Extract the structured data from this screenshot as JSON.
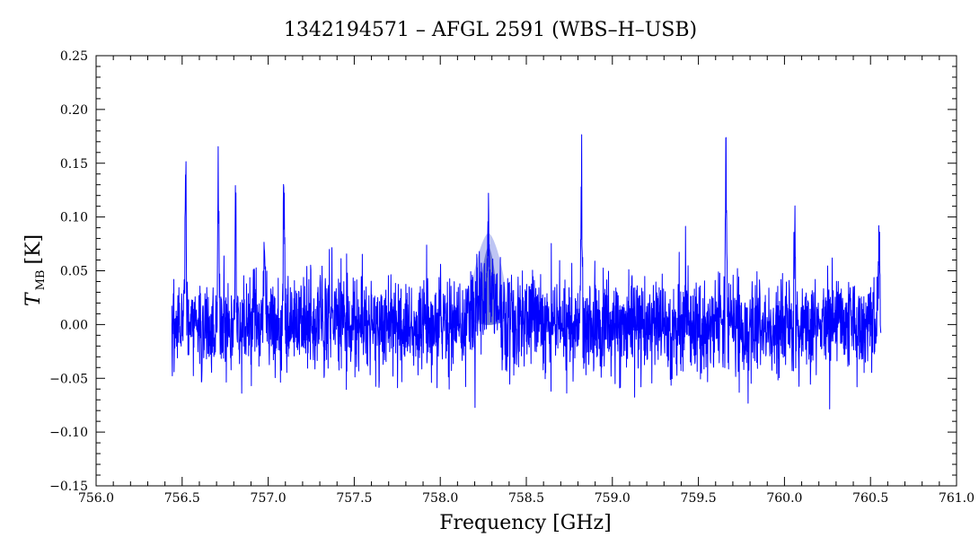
{
  "chart_data": {
    "type": "line",
    "title": "1342194571 – AFGL 2591 (WBS–H–USB)",
    "xlabel": "Frequency [GHz]",
    "ylabel": {
      "symbol": "T",
      "subscript": "MB",
      "unit": "[K]"
    },
    "xlim": [
      756.0,
      761.0
    ],
    "ylim": [
      -0.15,
      0.25
    ],
    "x_ticks": [
      "756.0",
      "756.5",
      "757.0",
      "757.5",
      "758.0",
      "758.5",
      "759.0",
      "759.5",
      "760.0",
      "760.5",
      "761.0"
    ],
    "y_ticks": [
      "−0.15",
      "−0.10",
      "−0.05",
      "0.00",
      "0.05",
      "0.10",
      "0.15",
      "0.20",
      "0.25"
    ],
    "grid": false,
    "colors": {
      "series": "#0000ff",
      "axes": "#000000",
      "highlight_fill": "#7d8ce8",
      "highlight_core": "#1f2fb0"
    },
    "series": [
      {
        "x_range": [
          756.44,
          760.56
        ],
        "noise_sigma": 0.024,
        "peaks": [
          {
            "x": 756.52,
            "y": 0.17
          },
          {
            "x": 756.71,
            "y": 0.14
          },
          {
            "x": 756.81,
            "y": 0.12
          },
          {
            "x": 756.98,
            "y": 0.1
          },
          {
            "x": 757.09,
            "y": 0.14
          },
          {
            "x": 758.28,
            "y": 0.085
          },
          {
            "x": 758.82,
            "y": 0.17
          },
          {
            "x": 759.66,
            "y": 0.19
          },
          {
            "x": 760.06,
            "y": 0.09
          },
          {
            "x": 760.55,
            "y": 0.08
          }
        ]
      }
    ],
    "highlight": {
      "x_center": 758.28,
      "x_halfwidth": 0.11,
      "y_peak": 0.085,
      "y_base": 0.0
    }
  }
}
